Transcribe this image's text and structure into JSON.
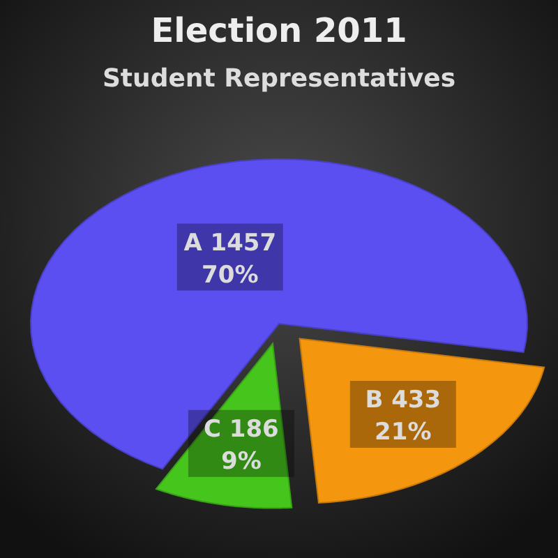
{
  "chart_data": {
    "type": "pie",
    "title": "Election 2011",
    "subtitle": "Student Representatives",
    "categories": [
      "A 1457",
      "B 433",
      "C 186"
    ],
    "values": [
      70,
      21,
      9
    ],
    "value_labels": [
      "70%",
      "21%",
      "9%"
    ],
    "colors": [
      "#5b4ff2",
      "#f5960f",
      "#46c61c"
    ]
  }
}
